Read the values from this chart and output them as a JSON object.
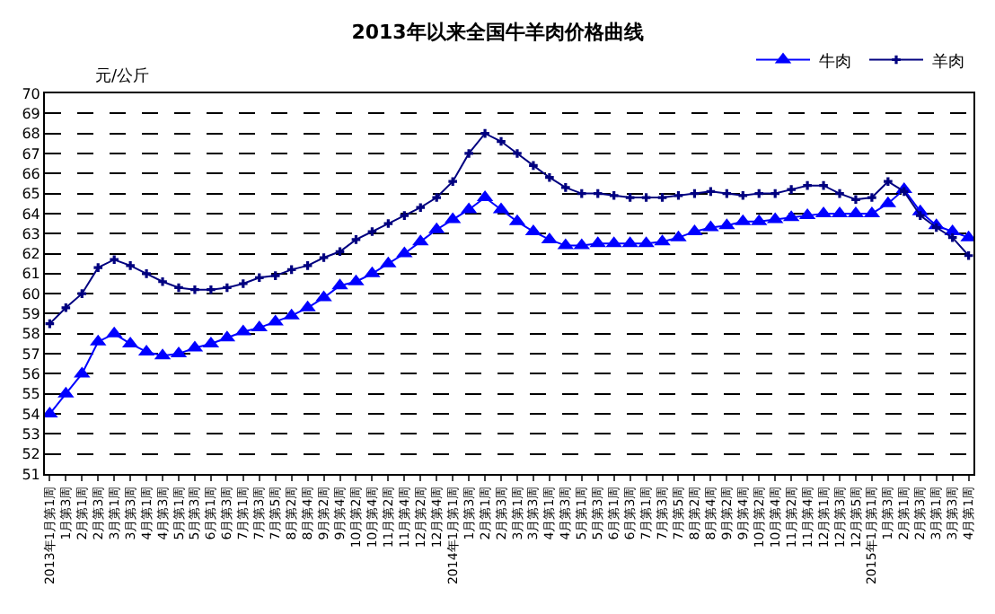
{
  "chart_data": {
    "type": "line",
    "title": "2013年以来全国牛羊肉价格曲线",
    "ylabel": "元/公斤",
    "categories": [
      "2013年1月第1周",
      "1月第3周",
      "2月第1周",
      "2月第3周",
      "3月第1周",
      "3月第3周",
      "4月第1周",
      "4月第3周",
      "5月第1周",
      "5月第3周",
      "6月第1周",
      "6月第3周",
      "7月第1周",
      "7月第3周",
      "7月第5周",
      "8月第2周",
      "8月第4周",
      "9月第2周",
      "9月第4周",
      "10月第2周",
      "10月第4周",
      "11月第2周",
      "11月第4周",
      "12月第2周",
      "12月第4周",
      "2014年1月第1周",
      "1月第3周",
      "2月第1周",
      "2月第3周",
      "3月第1周",
      "3月第3周",
      "4月第1周",
      "4月第3周",
      "5月第1周",
      "5月第3周",
      "6月第1周",
      "6月第3周",
      "7月第1周",
      "7月第3周",
      "7月第5周",
      "8月第2周",
      "8月第4周",
      "9月第2周",
      "9月第4周",
      "10月第2周",
      "10月第4周",
      "11月第2周",
      "11月第4周",
      "12月第1周",
      "12月第3周",
      "12月第5周",
      "2015年1月第1周",
      "1月第3周",
      "2月第1周",
      "2月第3周",
      "3月第1周",
      "3月第3周",
      "4月第1周"
    ],
    "series": [
      {
        "name": "牛肉",
        "color": "#0000ff",
        "marker": "triangle",
        "values": [
          54.0,
          55.0,
          56.0,
          57.6,
          58.0,
          57.5,
          57.1,
          56.9,
          57.0,
          57.3,
          57.5,
          57.8,
          58.1,
          58.3,
          58.6,
          58.9,
          59.3,
          59.8,
          60.4,
          60.6,
          61.0,
          61.5,
          62.0,
          62.6,
          63.2,
          63.7,
          64.2,
          64.8,
          64.2,
          63.6,
          63.1,
          62.7,
          62.4,
          62.4,
          62.5,
          62.5,
          62.5,
          62.5,
          62.6,
          62.8,
          63.1,
          63.3,
          63.4,
          63.6,
          63.6,
          63.7,
          63.8,
          63.9,
          64.0,
          64.0,
          64.0,
          64.0,
          64.5,
          65.2,
          64.1,
          63.4,
          63.1,
          62.8
        ]
      },
      {
        "name": "羊肉",
        "color": "#000080",
        "marker": "cross",
        "values": [
          58.5,
          59.3,
          60.0,
          61.3,
          61.7,
          61.4,
          61.0,
          60.6,
          60.3,
          60.2,
          60.2,
          60.3,
          60.5,
          60.8,
          60.9,
          61.2,
          61.4,
          61.8,
          62.1,
          62.7,
          63.1,
          63.5,
          63.9,
          64.3,
          64.8,
          65.6,
          67.0,
          68.0,
          67.6,
          67.0,
          66.4,
          65.8,
          65.3,
          65.0,
          65.0,
          64.9,
          64.8,
          64.8,
          64.8,
          64.9,
          65.0,
          65.1,
          65.0,
          64.9,
          65.0,
          65.0,
          65.2,
          65.4,
          65.4,
          65.0,
          64.7,
          64.8,
          65.6,
          65.1,
          63.9,
          63.3,
          62.8,
          61.9
        ]
      }
    ],
    "ylim": [
      51,
      70
    ],
    "yticks": [
      51,
      52,
      53,
      54,
      55,
      56,
      57,
      58,
      59,
      60,
      61,
      62,
      63,
      64,
      65,
      66,
      67,
      68,
      69,
      70
    ],
    "grid": "y",
    "legend": "top right"
  }
}
